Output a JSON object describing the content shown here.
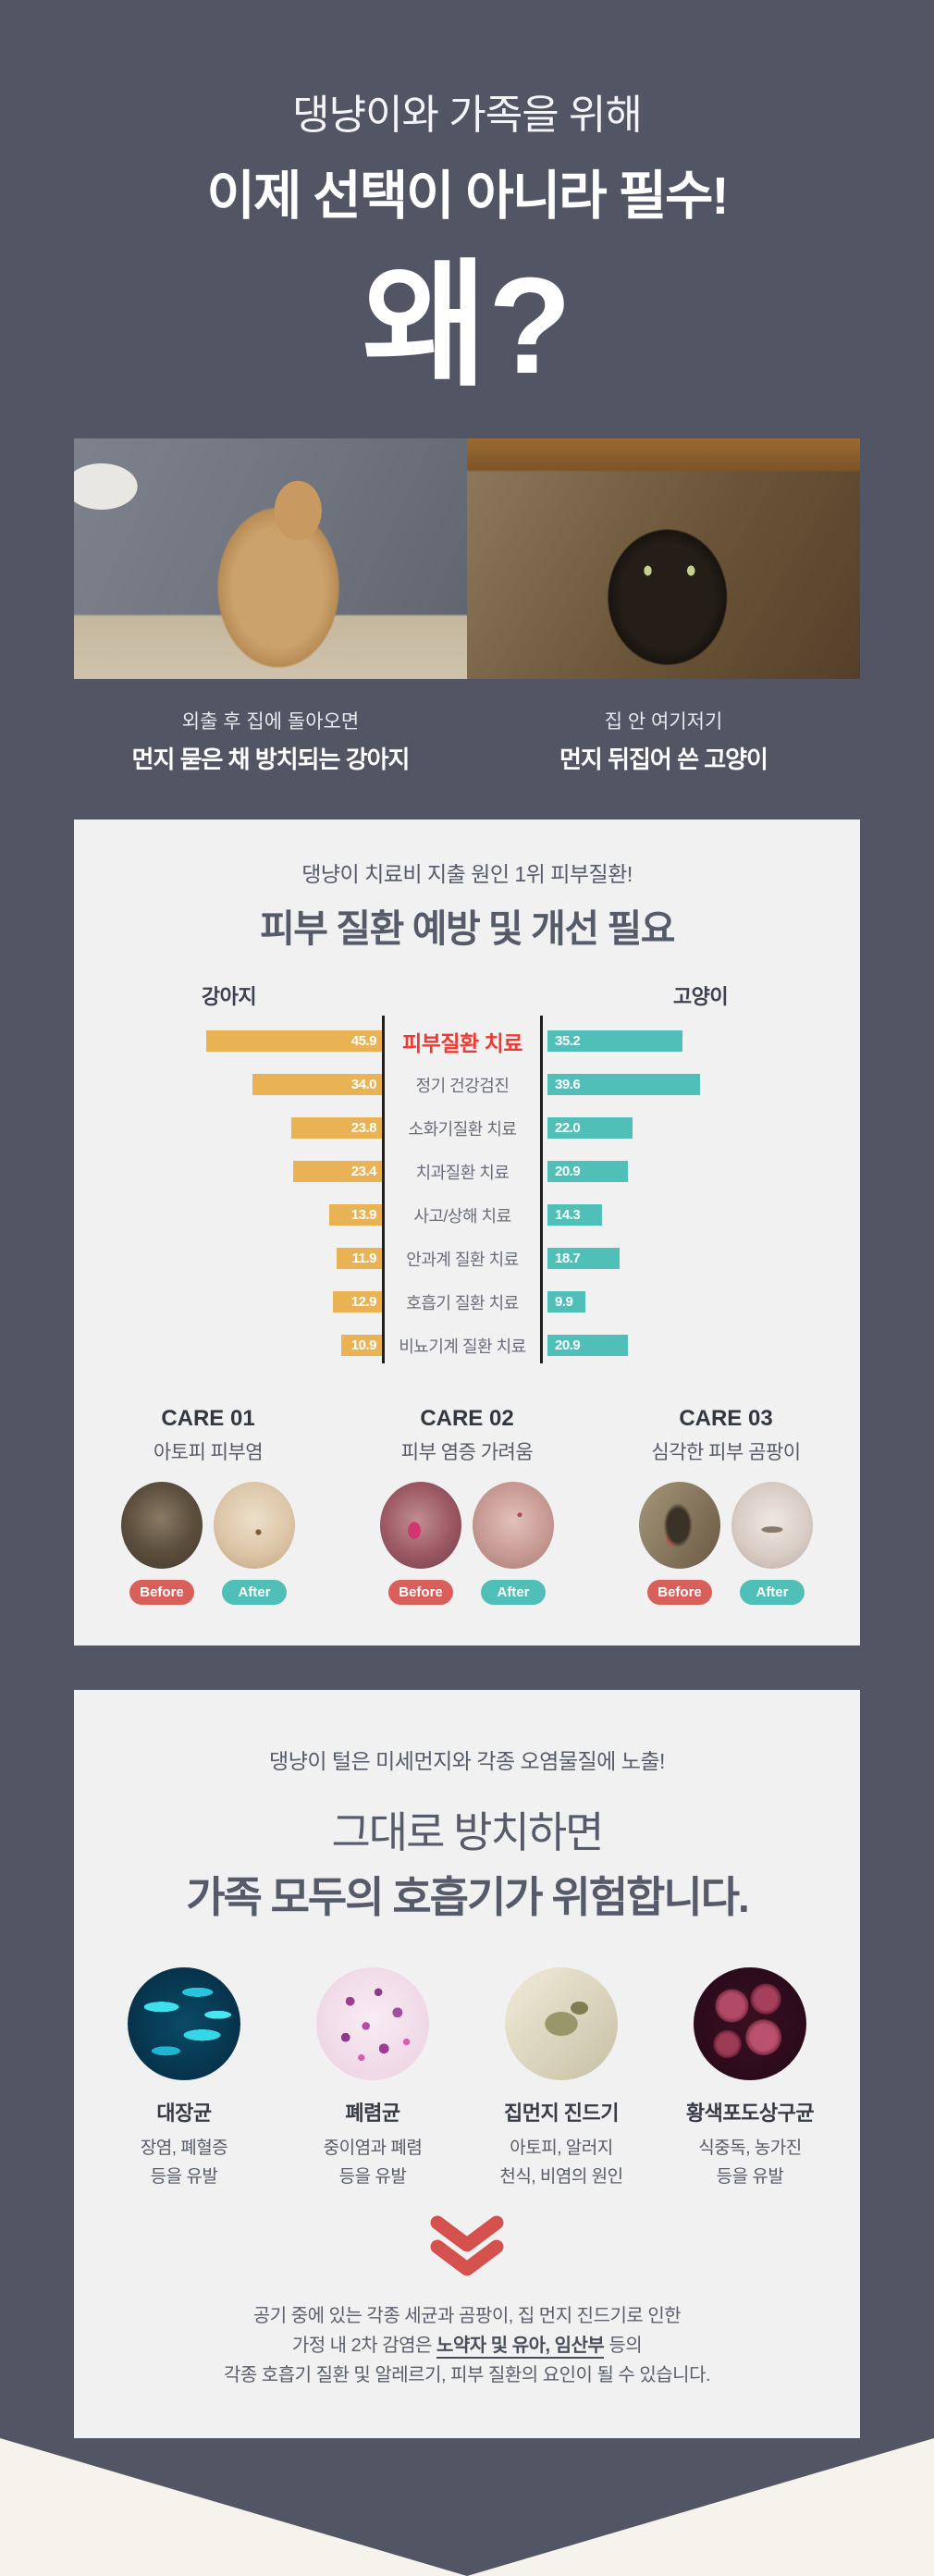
{
  "colors": {
    "background": "#525664",
    "card": "#f1f1f2",
    "bar_orange": "#e9b254",
    "bar_teal": "#4fbfb7",
    "highlight_red": "#ee3a33",
    "badge_red": "#d95f5a",
    "chevron_red": "#d5514d",
    "bottom_cream": "#f5f3ec"
  },
  "hero": {
    "subtitle": "댕냥이와 가족을 위해",
    "title": "이제 선택이 아니라 필수!",
    "question": "왜?"
  },
  "photos": {
    "dog": {
      "caption_line1": "외출 후 집에 돌아오면",
      "caption_line2": "먼지 묻은 채 방치되는 강아지"
    },
    "cat": {
      "caption_line1": "집 안 여기저기",
      "caption_line2": "먼지 뒤집어 쓴 고양이"
    }
  },
  "chart_card": {
    "subtitle": "댕냥이 치료비 지출 원인 1위 피부질환!",
    "title": "피부 질환 예방 및 개선 필요",
    "left_header": "강아지",
    "right_header": "고양이"
  },
  "chart_data": {
    "type": "bar",
    "orientation": "horizontal-mirrored",
    "categories": [
      "피부질환 치료",
      "정기 건강검진",
      "소화기질환 치료",
      "치과질환 치료",
      "사고/상해 치료",
      "안과계 질환 치료",
      "호흡기 질환 치료",
      "비뇨기계 질환 치료"
    ],
    "series": [
      {
        "name": "강아지",
        "values": [
          45.9,
          34.0,
          23.8,
          23.4,
          13.9,
          11.9,
          12.9,
          10.9
        ],
        "color": "#e9b254"
      },
      {
        "name": "고양이",
        "values": [
          35.2,
          39.6,
          22.0,
          20.9,
          14.3,
          18.7,
          9.9,
          20.9
        ],
        "color": "#4fbfb7"
      }
    ],
    "highlight_category": "피부질환 치료",
    "xlim": [
      0,
      50
    ],
    "value_labels_inside_bars": true,
    "grid": false,
    "legend_position": "top"
  },
  "care_items": [
    {
      "title": "CARE 01",
      "subtitle": "아토피 피부염",
      "before_label": "Before",
      "after_label": "After"
    },
    {
      "title": "CARE 02",
      "subtitle": "피부 염증 가려움",
      "before_label": "Before",
      "after_label": "After"
    },
    {
      "title": "CARE 03",
      "subtitle": "심각한 피부 곰팡이",
      "before_label": "Before",
      "after_label": "After"
    }
  ],
  "risk_card": {
    "subtitle": "댕냥이 털은 미세먼지와 각종 오염물질에 노출!",
    "title_line1": "그대로 방치하면",
    "title_line2": "가족 모두의 호흡기가 위험합니다.",
    "microbes": [
      {
        "name": "대장균",
        "desc_line1": "장염, 폐혈증",
        "desc_line2": "등을 유발"
      },
      {
        "name": "폐렴균",
        "desc_line1": "중이염과 폐렴",
        "desc_line2": "등을 유발"
      },
      {
        "name": "집먼지 진드기",
        "desc_line1": "아토피, 알러지",
        "desc_line2": "천식, 비염의 원인"
      },
      {
        "name": "황색포도상구균",
        "desc_line1": "식중독, 농가진",
        "desc_line2": "등을 유발"
      }
    ],
    "footer_line1": "공기 중에 있는 각종 세균과 곰팡이, 집 먼지 진드기로 인한",
    "footer_line2_pre": "가정 내 2차 감염은 ",
    "footer_line2_em": "노약자 및 유아, 임산부",
    "footer_line2_post": " 등의",
    "footer_line3": "각종 호흡기 질환 및 알레르기, 피부 질환의 요인이 될 수 있습니다."
  }
}
